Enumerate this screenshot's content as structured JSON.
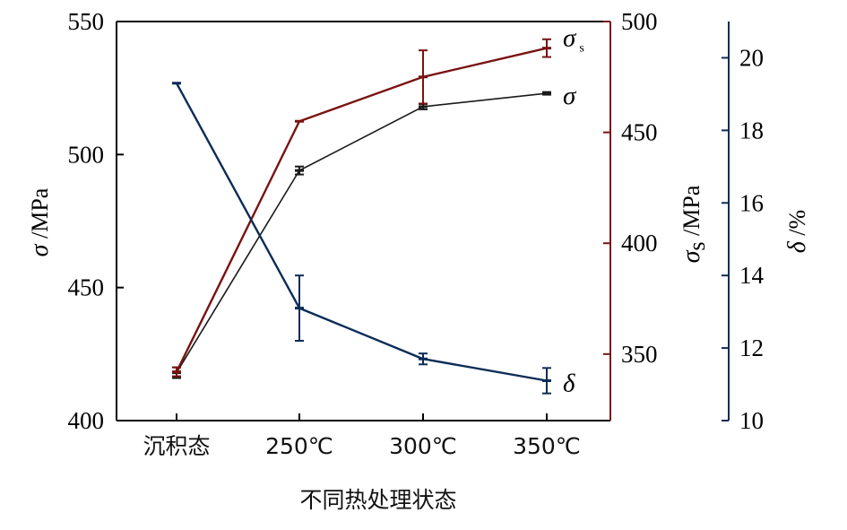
{
  "chart_data": {
    "type": "line",
    "categories": [
      "沉积态",
      "250℃",
      "300℃",
      "350℃"
    ],
    "xlabel": "不同热处理状态",
    "axes": {
      "left": {
        "label_symbol": "σ",
        "label_unit": " /MPa",
        "ylim": [
          400,
          550
        ],
        "ticks": [
          "400",
          "450",
          "500",
          "550"
        ],
        "tick_values": [
          400,
          450,
          500,
          550
        ],
        "color": "#000000"
      },
      "right1": {
        "label_symbol": "σ",
        "label_sub": "s",
        "label_unit": " /MPa",
        "ylim": [
          320,
          500
        ],
        "ticks": [
          "350",
          "400",
          "450",
          "500"
        ],
        "tick_values": [
          350,
          400,
          450,
          500
        ],
        "color": "#7a1212"
      },
      "right2": {
        "label_symbol": "δ",
        "label_unit": " /%",
        "ylim": [
          10,
          21
        ],
        "ticks": [
          "10",
          "12",
          "14",
          "16",
          "18",
          "20"
        ],
        "tick_values": [
          10,
          12,
          14,
          16,
          18,
          20
        ],
        "color": "#0b2c57"
      }
    },
    "series": [
      {
        "name": "σ",
        "name_sub": "",
        "axis": "left",
        "values": [
          418,
          494,
          518,
          523
        ],
        "errors": [
          2,
          1.5,
          1,
          0.5
        ],
        "color": "#1a1a1a",
        "stroke": 1.6
      },
      {
        "name": "σ",
        "name_sub": "s",
        "axis": "right1",
        "values": [
          342,
          455,
          475,
          488
        ],
        "errors": [
          2,
          0,
          12,
          4
        ],
        "color": "#7a1212",
        "stroke": 2.4
      },
      {
        "name": "δ",
        "name_sub": "",
        "axis": "right2",
        "values": [
          19.3,
          13.1,
          11.7,
          11.1
        ],
        "errors": [
          0,
          0.9,
          0.15,
          0.35
        ],
        "color": "#0b2c57",
        "stroke": 2.4
      }
    ]
  }
}
